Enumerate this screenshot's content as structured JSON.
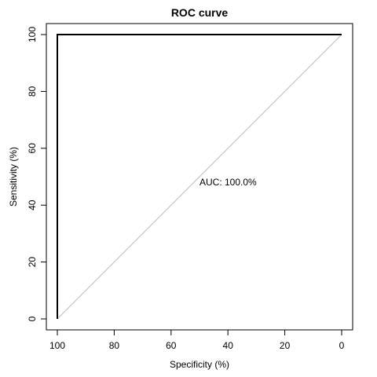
{
  "chart_data": {
    "type": "line",
    "title": "ROC curve",
    "xlabel": "Specificity (%)",
    "ylabel": "Sensitivity (%)",
    "xlim": [
      100,
      0
    ],
    "ylim": [
      0,
      100
    ],
    "x_reversed": true,
    "x_ticks": [
      100,
      80,
      60,
      40,
      20,
      0
    ],
    "y_ticks": [
      0,
      20,
      40,
      60,
      80,
      100
    ],
    "grid": false,
    "annotation": {
      "text": "AUC: 100.0%",
      "x": 50,
      "y": 48
    },
    "series": [
      {
        "points": [
          [
            100,
            0
          ],
          [
            100,
            100
          ],
          [
            0,
            100
          ]
        ],
        "color": "#000000"
      },
      {
        "points": [
          [
            100,
            0
          ],
          [
            0,
            100
          ]
        ],
        "color": "#bebebe"
      }
    ]
  }
}
